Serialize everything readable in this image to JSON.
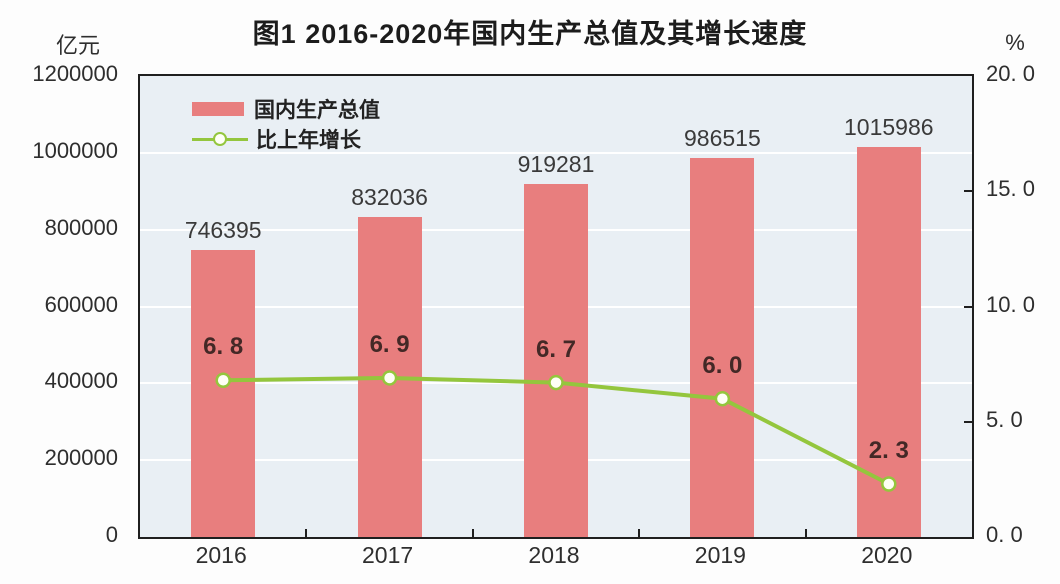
{
  "title": "图1  2016-2020年国内生产总值及其增长速度",
  "chart_data": {
    "type": "bar",
    "title": "图1  2016-2020年国内生产总值及其增长速度",
    "categories": [
      "2016",
      "2017",
      "2018",
      "2019",
      "2020"
    ],
    "series": [
      {
        "name": "国内生产总值",
        "type": "bar",
        "axis": "left",
        "values": [
          746395,
          832036,
          919281,
          986515,
          1015986
        ],
        "labels": [
          "746395",
          "832036",
          "919281",
          "986515",
          "1015986"
        ],
        "color": "#e87e7e"
      },
      {
        "name": "比上年增长",
        "type": "line",
        "axis": "right",
        "values": [
          6.8,
          6.9,
          6.7,
          6.0,
          2.3
        ],
        "labels": [
          "6. 8",
          "6. 9",
          "6. 7",
          "6. 0",
          "2. 3"
        ],
        "color": "#94c63d",
        "marker": "circle-white"
      }
    ],
    "left_axis": {
      "unit": "亿元",
      "min": 0,
      "max": 1200000,
      "step": 200000,
      "tick_labels": [
        "1200000",
        "1000000",
        "800000",
        "600000",
        "400000",
        "200000",
        "0"
      ]
    },
    "right_axis": {
      "unit": "%",
      "min": 0,
      "max": 20,
      "step": 5,
      "tick_labels": [
        "20. 0",
        "15. 0",
        "10. 0",
        "5. 0",
        "0. 0"
      ]
    },
    "legend": [
      {
        "label": "国内生产总值",
        "swatch": "bar"
      },
      {
        "label": "比上年增长",
        "swatch": "line"
      }
    ],
    "grid": true,
    "plot_background": "#e9eff4",
    "grid_color": "#ffffff"
  }
}
